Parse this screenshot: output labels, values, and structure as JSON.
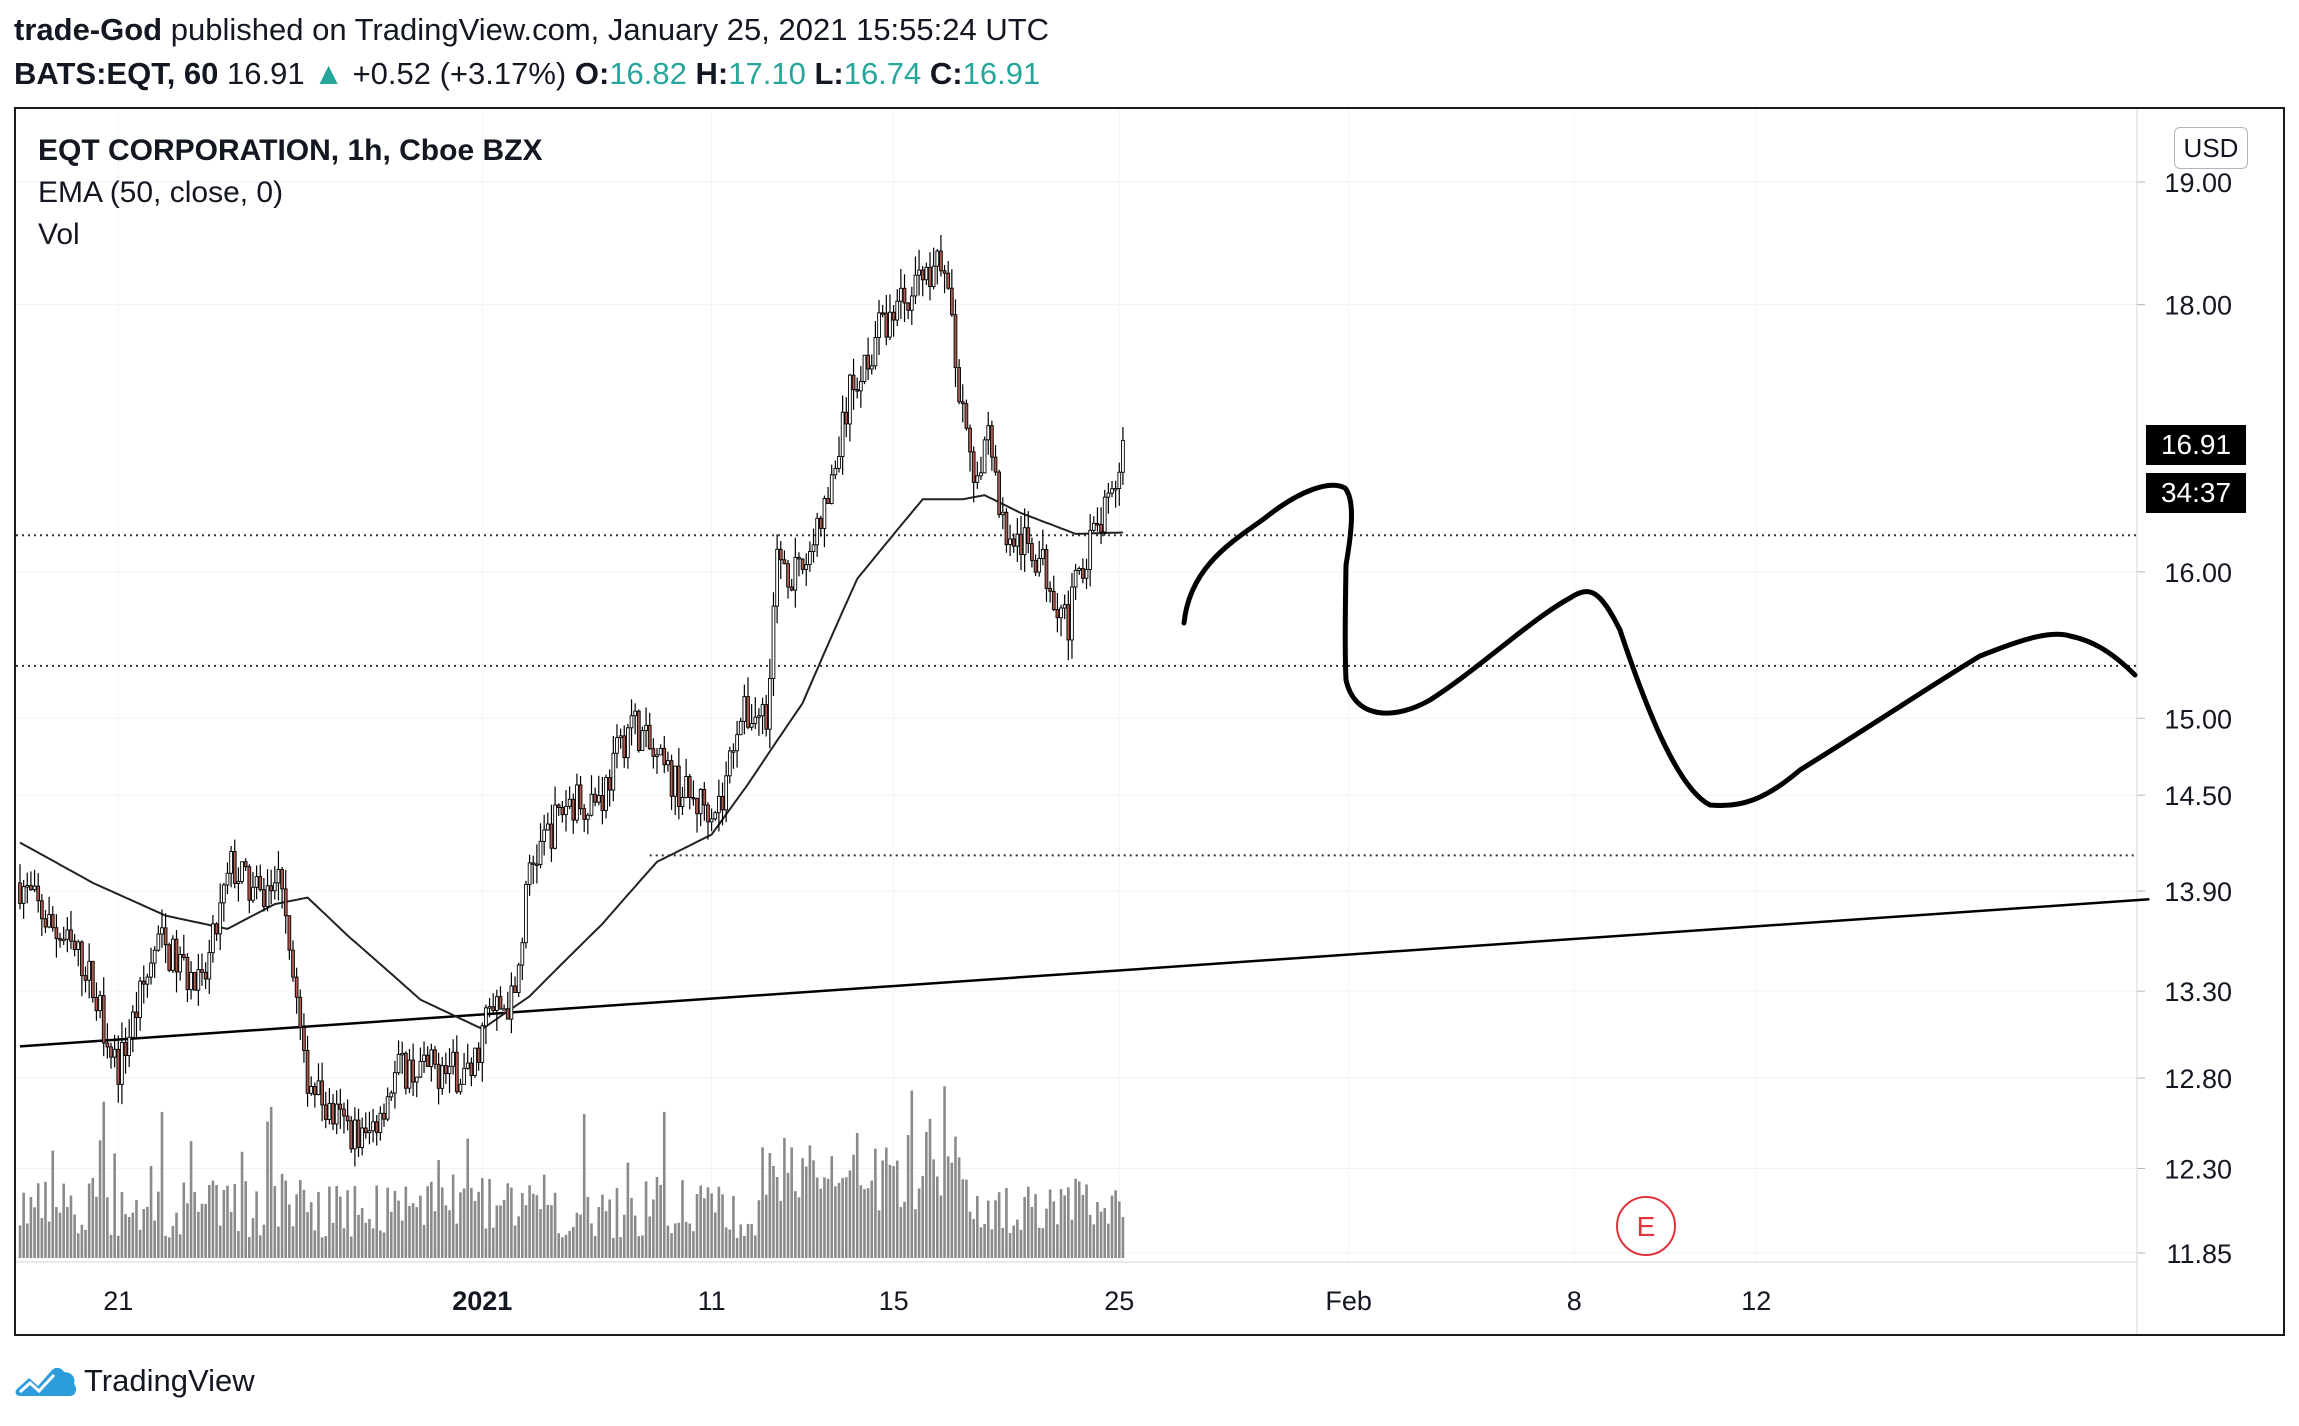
{
  "header": {
    "author": "trade-God",
    "published_text": "published on TradingView.com, January 25, 2021 15:55:24 UTC",
    "symbol": "BATS:EQT, 60",
    "last": "16.91",
    "change": "+0.52 (+3.17%)",
    "o_label": "O:",
    "o_value": "16.82",
    "h_label": "H:",
    "h_value": "17.10",
    "l_label": "L:",
    "l_value": "16.74",
    "c_label": "C:",
    "c_value": "16.91"
  },
  "legend": {
    "title": "EQT CORPORATION, 1h, Cboe BZX",
    "ema": "EMA (50, close, 0)",
    "vol": "Vol"
  },
  "currency_button": "USD",
  "price_tag": "16.91",
  "countdown_tag": "34:37",
  "earnings_marker": "E",
  "footer": {
    "brand": "TradingView"
  },
  "colors": {
    "up": "#26a69a",
    "down": "#ef5350",
    "candle_up_fill": "#ffffff",
    "candle_down_fill": "#b05a4f",
    "candle_outline": "#000000",
    "volume": "#8a8a8a",
    "ema": "#222222",
    "earnings": "#e0333b"
  },
  "chart_data": {
    "type": "candlestick",
    "y_axis": {
      "ticks": [
        19.0,
        18.0,
        16.0,
        15.0,
        14.5,
        13.9,
        13.3,
        12.8,
        12.3,
        11.85
      ],
      "tick_labels": [
        "19.00",
        "18.00",
        "16.00",
        "15.00",
        "14.50",
        "13.90",
        "13.30",
        "12.80",
        "12.30",
        "11.85"
      ],
      "scale": "log",
      "range": [
        11.85,
        19.0
      ]
    },
    "x_axis": {
      "ticks": [
        {
          "label": "21",
          "bar": 27,
          "bold": false
        },
        {
          "label": "2021",
          "bar": 127,
          "bold": true
        },
        {
          "label": "11",
          "bar": 190,
          "bold": false
        },
        {
          "label": "15",
          "bar": 240,
          "bold": false
        },
        {
          "label": "25",
          "bar": 302,
          "bold": false
        },
        {
          "label": "Feb",
          "bar": 365,
          "bold": false
        },
        {
          "label": "8",
          "bar": 427,
          "bold": false
        },
        {
          "label": "12",
          "bar": 477,
          "bold": false
        }
      ]
    },
    "series": [
      {
        "name": "EQT",
        "key_closes": [
          [
            0,
            13.95
          ],
          [
            8,
            13.7
          ],
          [
            18,
            13.45
          ],
          [
            27,
            12.85
          ],
          [
            38,
            13.6
          ],
          [
            50,
            13.3
          ],
          [
            58,
            14.05
          ],
          [
            66,
            13.85
          ],
          [
            72,
            14.0
          ],
          [
            78,
            12.85
          ],
          [
            85,
            12.6
          ],
          [
            95,
            12.45
          ],
          [
            104,
            12.85
          ],
          [
            114,
            12.85
          ],
          [
            124,
            12.82
          ],
          [
            128,
            13.15
          ],
          [
            136,
            13.25
          ],
          [
            140,
            14.05
          ],
          [
            150,
            14.45
          ],
          [
            160,
            14.5
          ],
          [
            168,
            15.0
          ],
          [
            175,
            14.7
          ],
          [
            185,
            14.45
          ],
          [
            193,
            14.45
          ],
          [
            197,
            15.0
          ],
          [
            205,
            15.05
          ],
          [
            208,
            16.1
          ],
          [
            214,
            15.95
          ],
          [
            222,
            16.5
          ],
          [
            228,
            17.3
          ],
          [
            236,
            17.8
          ],
          [
            244,
            18.1
          ],
          [
            250,
            18.3
          ],
          [
            254,
            18.35
          ],
          [
            258,
            17.3
          ],
          [
            262,
            16.6
          ],
          [
            266,
            17.1
          ],
          [
            270,
            16.3
          ],
          [
            280,
            16.1
          ],
          [
            288,
            15.65
          ],
          [
            292,
            16.1
          ],
          [
            296,
            16.3
          ],
          [
            300,
            16.5
          ],
          [
            303,
            16.91
          ]
        ]
      },
      {
        "name": "EMA (50, close, 0)",
        "key_values": [
          [
            0,
            14.2
          ],
          [
            20,
            13.95
          ],
          [
            40,
            13.75
          ],
          [
            57,
            13.67
          ],
          [
            70,
            13.82
          ],
          [
            79,
            13.86
          ],
          [
            90,
            13.63
          ],
          [
            110,
            13.25
          ],
          [
            127,
            13.08
          ],
          [
            140,
            13.27
          ],
          [
            160,
            13.7
          ],
          [
            175,
            14.08
          ],
          [
            190,
            14.25
          ],
          [
            200,
            14.57
          ],
          [
            215,
            15.1
          ],
          [
            230,
            15.95
          ],
          [
            248,
            16.52
          ],
          [
            259,
            16.52
          ],
          [
            265,
            16.55
          ],
          [
            275,
            16.42
          ],
          [
            290,
            16.27
          ],
          [
            303,
            16.28
          ]
        ]
      }
    ],
    "volume": {
      "bar_count": 304
    },
    "annotations": {
      "horizontal_levels": [
        16.26,
        15.35,
        14.12
      ],
      "trendline": {
        "from": [
          0,
          12.98
        ],
        "to": [
          585,
          13.85
        ]
      }
    }
  }
}
